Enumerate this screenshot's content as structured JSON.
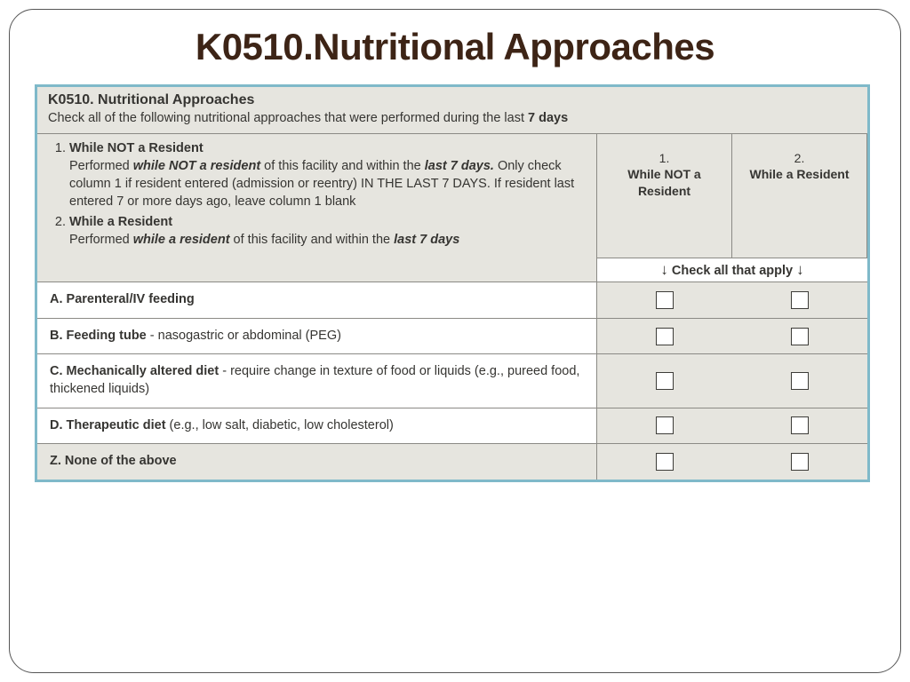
{
  "slide": {
    "title": "K0510.Nutritional Approaches",
    "title_color": "#3d2416",
    "title_fontsize": 42,
    "frame_border_radius": 28
  },
  "form": {
    "border_color": "#7fb9c9",
    "bg_color": "#e6e5df",
    "text_color": "#363532",
    "code": "K0510.",
    "code_title": "Nutritional Approaches",
    "instruction_pre": "Check all of the following nutritional approaches that were performed during the last ",
    "instruction_bold": "7 days",
    "col1": {
      "num": "1.",
      "label": "While NOT a Resident"
    },
    "col2": {
      "num": "2.",
      "label": "While a Resident"
    },
    "check_all_apply": "Check all that apply",
    "defs": {
      "d1_num": "1.",
      "d1_head": "While NOT a Resident",
      "d1_p1_a": "Performed ",
      "d1_p1_bi": "while NOT a resident",
      "d1_p1_b": " of this facility and within the ",
      "d1_p1_bi2": "last 7 days.",
      "d1_p1_c": "  Only check column 1 if resident entered (admission or reentry) IN THE LAST 7 DAYS.  If resident last entered 7 or more days ago, leave column 1 blank",
      "d2_num": "2.",
      "d2_head": "While a Resident",
      "d2_p1_a": "Performed ",
      "d2_p1_bi": "while a resident",
      "d2_p1_b": " of this facility and within the ",
      "d2_p1_bi2": "last 7 days"
    },
    "items": [
      {
        "letter": "A.",
        "bold": "Parenteral/IV feeding",
        "rest": ""
      },
      {
        "letter": "B.",
        "bold": "Feeding tube",
        "rest": " - nasogastric or abdominal (PEG)"
      },
      {
        "letter": "C.",
        "bold": "Mechanically altered diet",
        "rest": " - require change in texture of food or liquids (e.g., pureed food, thickened liquids)"
      },
      {
        "letter": "D.",
        "bold": "Therapeutic diet",
        "rest": " (e.g., low salt, diabetic, low cholesterol)"
      },
      {
        "letter": "Z.",
        "bold": "None of the above",
        "rest": ""
      }
    ]
  }
}
